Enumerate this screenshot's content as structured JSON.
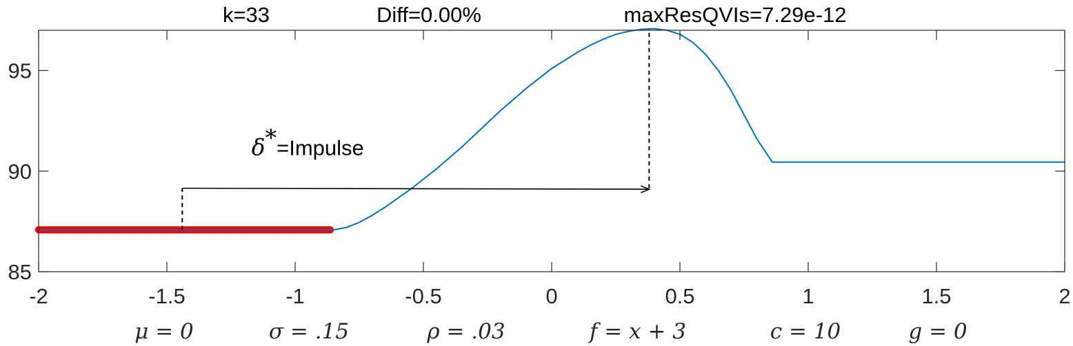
{
  "title": {
    "k": "k=33",
    "diff": "Diff=0.00%",
    "max_res": "maxResQVIs=7.29e-12"
  },
  "params": [
    "μ = 0",
    "σ = .15",
    "ρ = .03",
    "f = x + 3",
    "c = 10",
    "g = 0"
  ],
  "annotation": {
    "symbol": "δ",
    "superscript": "*",
    "text": "=Impulse"
  },
  "chart_data": {
    "type": "line",
    "xlim": [
      -2,
      2
    ],
    "ylim": [
      85,
      97
    ],
    "x_ticks": [
      -2,
      -1.5,
      -1,
      -0.5,
      0,
      0.5,
      1,
      1.5,
      2
    ],
    "x_tick_labels": [
      "-2",
      "-1.5",
      "-1",
      "-0.5",
      "0",
      "0.5",
      "1",
      "1.5",
      "2"
    ],
    "y_ticks": [
      85,
      90,
      95
    ],
    "y_tick_labels": [
      "85",
      "90",
      "95"
    ],
    "grid": false,
    "series": [
      {
        "color": "#0072bd",
        "x": [
          -2,
          -0.85,
          -0.8,
          -0.75,
          -0.7,
          -0.65,
          -0.6,
          -0.55,
          -0.5,
          -0.45,
          -0.4,
          -0.35,
          -0.3,
          -0.25,
          -0.2,
          -0.15,
          -0.1,
          -0.05,
          0,
          0.05,
          0.1,
          0.15,
          0.2,
          0.25,
          0.3,
          0.35,
          0.4,
          0.45,
          0.5,
          0.55,
          0.6,
          0.65,
          0.7,
          0.75,
          0.8,
          0.86,
          1.0,
          1.5,
          2.0
        ],
        "y": [
          87.08,
          87.08,
          87.2,
          87.45,
          87.8,
          88.2,
          88.65,
          89.1,
          89.6,
          90.1,
          90.65,
          91.2,
          91.8,
          92.4,
          93.0,
          93.55,
          94.1,
          94.6,
          95.1,
          95.5,
          95.9,
          96.25,
          96.55,
          96.8,
          96.95,
          97.05,
          97.08,
          97.0,
          96.8,
          96.4,
          95.8,
          95.0,
          94.0,
          92.8,
          91.6,
          90.45,
          90.45,
          90.45,
          90.45
        ]
      }
    ],
    "marker_region": {
      "color": "#ff0000",
      "x_start": -2,
      "x_end": -0.86,
      "y": 87.08
    },
    "dashed_lines": [
      {
        "x": -1.44,
        "y_from": 87.08,
        "y_to": 89.15
      },
      {
        "x": 0.38,
        "y_from": 89.15,
        "y_to": 97.08
      }
    ],
    "arrow": {
      "x_from": -1.44,
      "x_to": 0.38,
      "y_from": 89.15,
      "y_to": 89.1
    },
    "annotation_pos": {
      "x": -1.17,
      "y": 90.8
    }
  }
}
